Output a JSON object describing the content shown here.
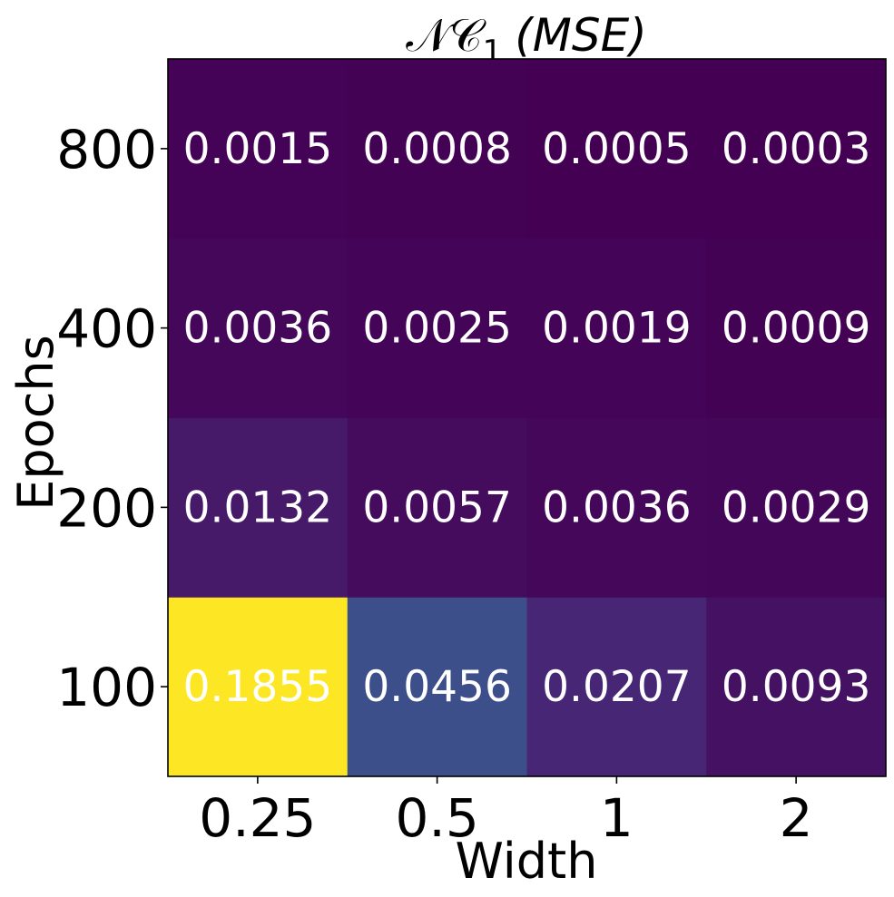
{
  "chart_data": {
    "type": "heatmap",
    "title": {
      "symbol": "𝒩𝒞",
      "subscript": "1",
      "rest": "(MSE)"
    },
    "xlabel": "Width",
    "ylabel": "Epochs",
    "x_categories": [
      "0.25",
      "0.5",
      "1",
      "2"
    ],
    "y_categories": [
      "100",
      "200",
      "400",
      "800"
    ],
    "values": [
      [
        0.1855,
        0.0456,
        0.0207,
        0.0093
      ],
      [
        0.0132,
        0.0057,
        0.0036,
        0.0029
      ],
      [
        0.0036,
        0.0025,
        0.0019,
        0.0009
      ],
      [
        0.0015,
        0.0008,
        0.0005,
        0.0003
      ]
    ],
    "value_labels": [
      [
        "0.1855",
        "0.0456",
        "0.0207",
        "0.0093"
      ],
      [
        "0.0132",
        "0.0057",
        "0.0036",
        "0.0029"
      ],
      [
        "0.0036",
        "0.0025",
        "0.0019",
        "0.0009"
      ],
      [
        "0.0015",
        "0.0008",
        "0.0005",
        "0.0003"
      ]
    ],
    "colormap": "viridis",
    "cell_text_color": "#ffffff"
  }
}
